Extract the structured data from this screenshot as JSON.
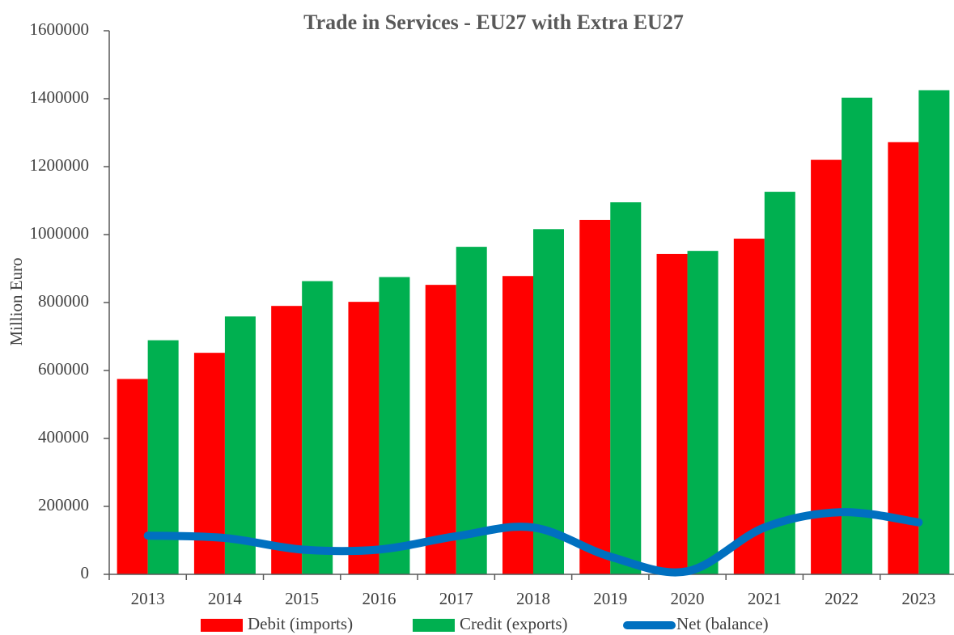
{
  "chart_data": {
    "type": "bar_line",
    "title": "Trade in Services - EU27 with Extra EU27",
    "y_label": "Million Euro",
    "categories": [
      "2013",
      "2014",
      "2015",
      "2016",
      "2017",
      "2018",
      "2019",
      "2020",
      "2021",
      "2022",
      "2023"
    ],
    "series": [
      {
        "name": "Debit (imports)",
        "type": "bar",
        "color": "#ff0000",
        "values": [
          575000,
          652000,
          790000,
          802000,
          852000,
          878000,
          1043000,
          943000,
          988000,
          1220000,
          1272000
        ]
      },
      {
        "name": "Credit (exports)",
        "type": "bar",
        "color": "#00b050",
        "values": [
          689000,
          759000,
          863000,
          875000,
          964000,
          1016000,
          1095000,
          952000,
          1126000,
          1403000,
          1425000
        ]
      },
      {
        "name": "Net (balance)",
        "type": "line",
        "color": "#0070c0",
        "values": [
          114000,
          107000,
          73000,
          73000,
          112000,
          138000,
          52000,
          9000,
          138000,
          183000,
          153000
        ]
      }
    ],
    "ylim": [
      0,
      1600000
    ],
    "yticks": [
      0,
      200000,
      400000,
      600000,
      800000,
      1000000,
      1200000,
      1400000,
      1600000
    ],
    "legend": "bottom"
  }
}
